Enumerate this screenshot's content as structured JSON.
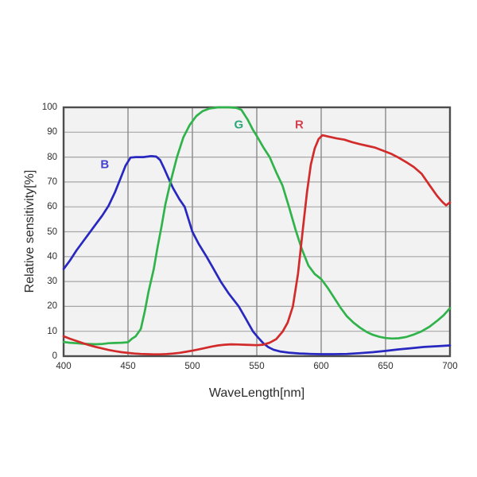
{
  "page": {
    "background": "#ffffff"
  },
  "chart_data": {
    "type": "line",
    "title": "",
    "xlabel": "WaveLength[nm]",
    "ylabel": "Relative sensitivity[%]",
    "xlim": [
      400,
      700
    ],
    "ylim": [
      0,
      100
    ],
    "x_ticks": [
      400,
      450,
      500,
      550,
      600,
      650,
      700
    ],
    "y_ticks": [
      0,
      10,
      20,
      30,
      40,
      50,
      60,
      70,
      80,
      90,
      100
    ],
    "grid": true,
    "legend_position": "inline-labels",
    "colors": {
      "plot_bg": "#f2f2f2",
      "grid_horizontal": "#a6a6a6",
      "grid_vertical": "#8a8a8a",
      "frame": "#4d4d4d",
      "tick_text": "#2e2e2e",
      "axis_title_text": "#2b2b2b"
    },
    "series": [
      {
        "name": "B",
        "color": "#2828c0",
        "label_color": "#4343cf",
        "label_pos": {
          "x": 432,
          "y": 77
        },
        "points": [
          [
            400,
            35
          ],
          [
            405,
            38.5
          ],
          [
            410,
            42.5
          ],
          [
            415,
            46
          ],
          [
            420,
            49.5
          ],
          [
            425,
            53
          ],
          [
            430,
            56.5
          ],
          [
            435,
            60.5
          ],
          [
            440,
            66
          ],
          [
            445,
            72.5
          ],
          [
            448,
            76.5
          ],
          [
            452,
            79.8
          ],
          [
            456,
            80
          ],
          [
            462,
            80
          ],
          [
            468,
            80.4
          ],
          [
            472,
            80.2
          ],
          [
            475,
            78.8
          ],
          [
            478,
            75.5
          ],
          [
            481,
            72
          ],
          [
            485,
            67.5
          ],
          [
            490,
            63
          ],
          [
            494,
            60
          ],
          [
            500,
            50
          ],
          [
            505,
            45
          ],
          [
            511,
            40
          ],
          [
            516,
            35.5
          ],
          [
            522,
            30
          ],
          [
            528,
            25.3
          ],
          [
            536,
            20
          ],
          [
            541,
            15.5
          ],
          [
            547,
            10
          ],
          [
            551,
            7.5
          ],
          [
            555,
            5.2
          ],
          [
            559,
            3.6
          ],
          [
            563,
            2.6
          ],
          [
            568,
            1.9
          ],
          [
            575,
            1.4
          ],
          [
            583,
            1.1
          ],
          [
            592,
            0.9
          ],
          [
            600,
            0.8
          ],
          [
            610,
            0.8
          ],
          [
            620,
            0.9
          ],
          [
            630,
            1.2
          ],
          [
            640,
            1.6
          ],
          [
            650,
            2.1
          ],
          [
            660,
            2.7
          ],
          [
            670,
            3.2
          ],
          [
            680,
            3.7
          ],
          [
            690,
            4
          ],
          [
            700,
            4.3
          ]
        ]
      },
      {
        "name": "G",
        "color": "#2fb34a",
        "label_color": "#2aa878",
        "label_pos": {
          "x": 536,
          "y": 93
        },
        "points": [
          [
            400,
            5.7
          ],
          [
            405,
            5.4
          ],
          [
            410,
            5.2
          ],
          [
            415,
            5
          ],
          [
            420,
            4.9
          ],
          [
            425,
            4.8
          ],
          [
            430,
            4.9
          ],
          [
            435,
            5.2
          ],
          [
            440,
            5.3
          ],
          [
            445,
            5.4
          ],
          [
            450,
            5.6
          ],
          [
            453,
            7
          ],
          [
            456,
            8
          ],
          [
            460,
            11
          ],
          [
            463,
            18
          ],
          [
            466,
            26
          ],
          [
            470,
            35
          ],
          [
            473,
            44
          ],
          [
            476,
            52
          ],
          [
            479,
            61
          ],
          [
            483,
            70
          ],
          [
            488,
            80
          ],
          [
            493,
            88
          ],
          [
            498,
            93
          ],
          [
            503,
            96.5
          ],
          [
            508,
            98.5
          ],
          [
            513,
            99.5
          ],
          [
            520,
            100
          ],
          [
            528,
            100
          ],
          [
            534,
            99.8
          ],
          [
            538,
            99
          ],
          [
            543,
            95
          ],
          [
            547,
            91
          ],
          [
            550,
            88.5
          ],
          [
            555,
            84
          ],
          [
            560,
            80
          ],
          [
            565,
            74
          ],
          [
            570,
            68.5
          ],
          [
            575,
            60
          ],
          [
            580,
            51
          ],
          [
            585,
            43
          ],
          [
            590,
            36.5
          ],
          [
            595,
            33
          ],
          [
            600,
            31
          ],
          [
            605,
            27.5
          ],
          [
            610,
            23.5
          ],
          [
            615,
            19.5
          ],
          [
            620,
            16
          ],
          [
            625,
            13.5
          ],
          [
            630,
            11.5
          ],
          [
            635,
            9.8
          ],
          [
            640,
            8.6
          ],
          [
            645,
            7.8
          ],
          [
            650,
            7.3
          ],
          [
            655,
            7.1
          ],
          [
            660,
            7.2
          ],
          [
            666,
            7.7
          ],
          [
            672,
            8.7
          ],
          [
            678,
            10
          ],
          [
            684,
            11.8
          ],
          [
            690,
            14.2
          ],
          [
            695,
            16.4
          ],
          [
            700,
            19.3
          ]
        ]
      },
      {
        "name": "R",
        "color": "#d22b2b",
        "label_color": "#d4404e",
        "label_pos": {
          "x": 583,
          "y": 93
        },
        "points": [
          [
            400,
            8
          ],
          [
            405,
            7
          ],
          [
            410,
            6.1
          ],
          [
            415,
            5.2
          ],
          [
            420,
            4.4
          ],
          [
            425,
            3.7
          ],
          [
            430,
            3.1
          ],
          [
            435,
            2.5
          ],
          [
            440,
            2
          ],
          [
            445,
            1.6
          ],
          [
            450,
            1.3
          ],
          [
            455,
            1.05
          ],
          [
            460,
            0.9
          ],
          [
            465,
            0.8
          ],
          [
            470,
            0.75
          ],
          [
            475,
            0.75
          ],
          [
            480,
            0.85
          ],
          [
            485,
            1.05
          ],
          [
            490,
            1.35
          ],
          [
            495,
            1.75
          ],
          [
            500,
            2.2
          ],
          [
            505,
            2.75
          ],
          [
            510,
            3.3
          ],
          [
            515,
            3.85
          ],
          [
            520,
            4.3
          ],
          [
            525,
            4.6
          ],
          [
            530,
            4.75
          ],
          [
            535,
            4.7
          ],
          [
            540,
            4.6
          ],
          [
            545,
            4.5
          ],
          [
            550,
            4.4
          ],
          [
            555,
            4.6
          ],
          [
            560,
            5.4
          ],
          [
            565,
            6.8
          ],
          [
            570,
            9.8
          ],
          [
            574,
            13.5
          ],
          [
            578,
            20
          ],
          [
            582,
            33
          ],
          [
            586,
            52
          ],
          [
            589,
            66
          ],
          [
            592,
            77
          ],
          [
            595,
            83.5
          ],
          [
            598,
            87.3
          ],
          [
            601,
            88.8
          ],
          [
            606,
            88.2
          ],
          [
            612,
            87.5
          ],
          [
            618,
            87
          ],
          [
            624,
            86
          ],
          [
            630,
            85.2
          ],
          [
            636,
            84.5
          ],
          [
            642,
            83.8
          ],
          [
            648,
            82.6
          ],
          [
            654,
            81.4
          ],
          [
            660,
            79.8
          ],
          [
            666,
            78
          ],
          [
            672,
            76
          ],
          [
            678,
            73.3
          ],
          [
            684,
            68.8
          ],
          [
            690,
            64.4
          ],
          [
            694,
            62
          ],
          [
            697,
            60.6
          ],
          [
            700,
            61.8
          ]
        ]
      }
    ]
  }
}
